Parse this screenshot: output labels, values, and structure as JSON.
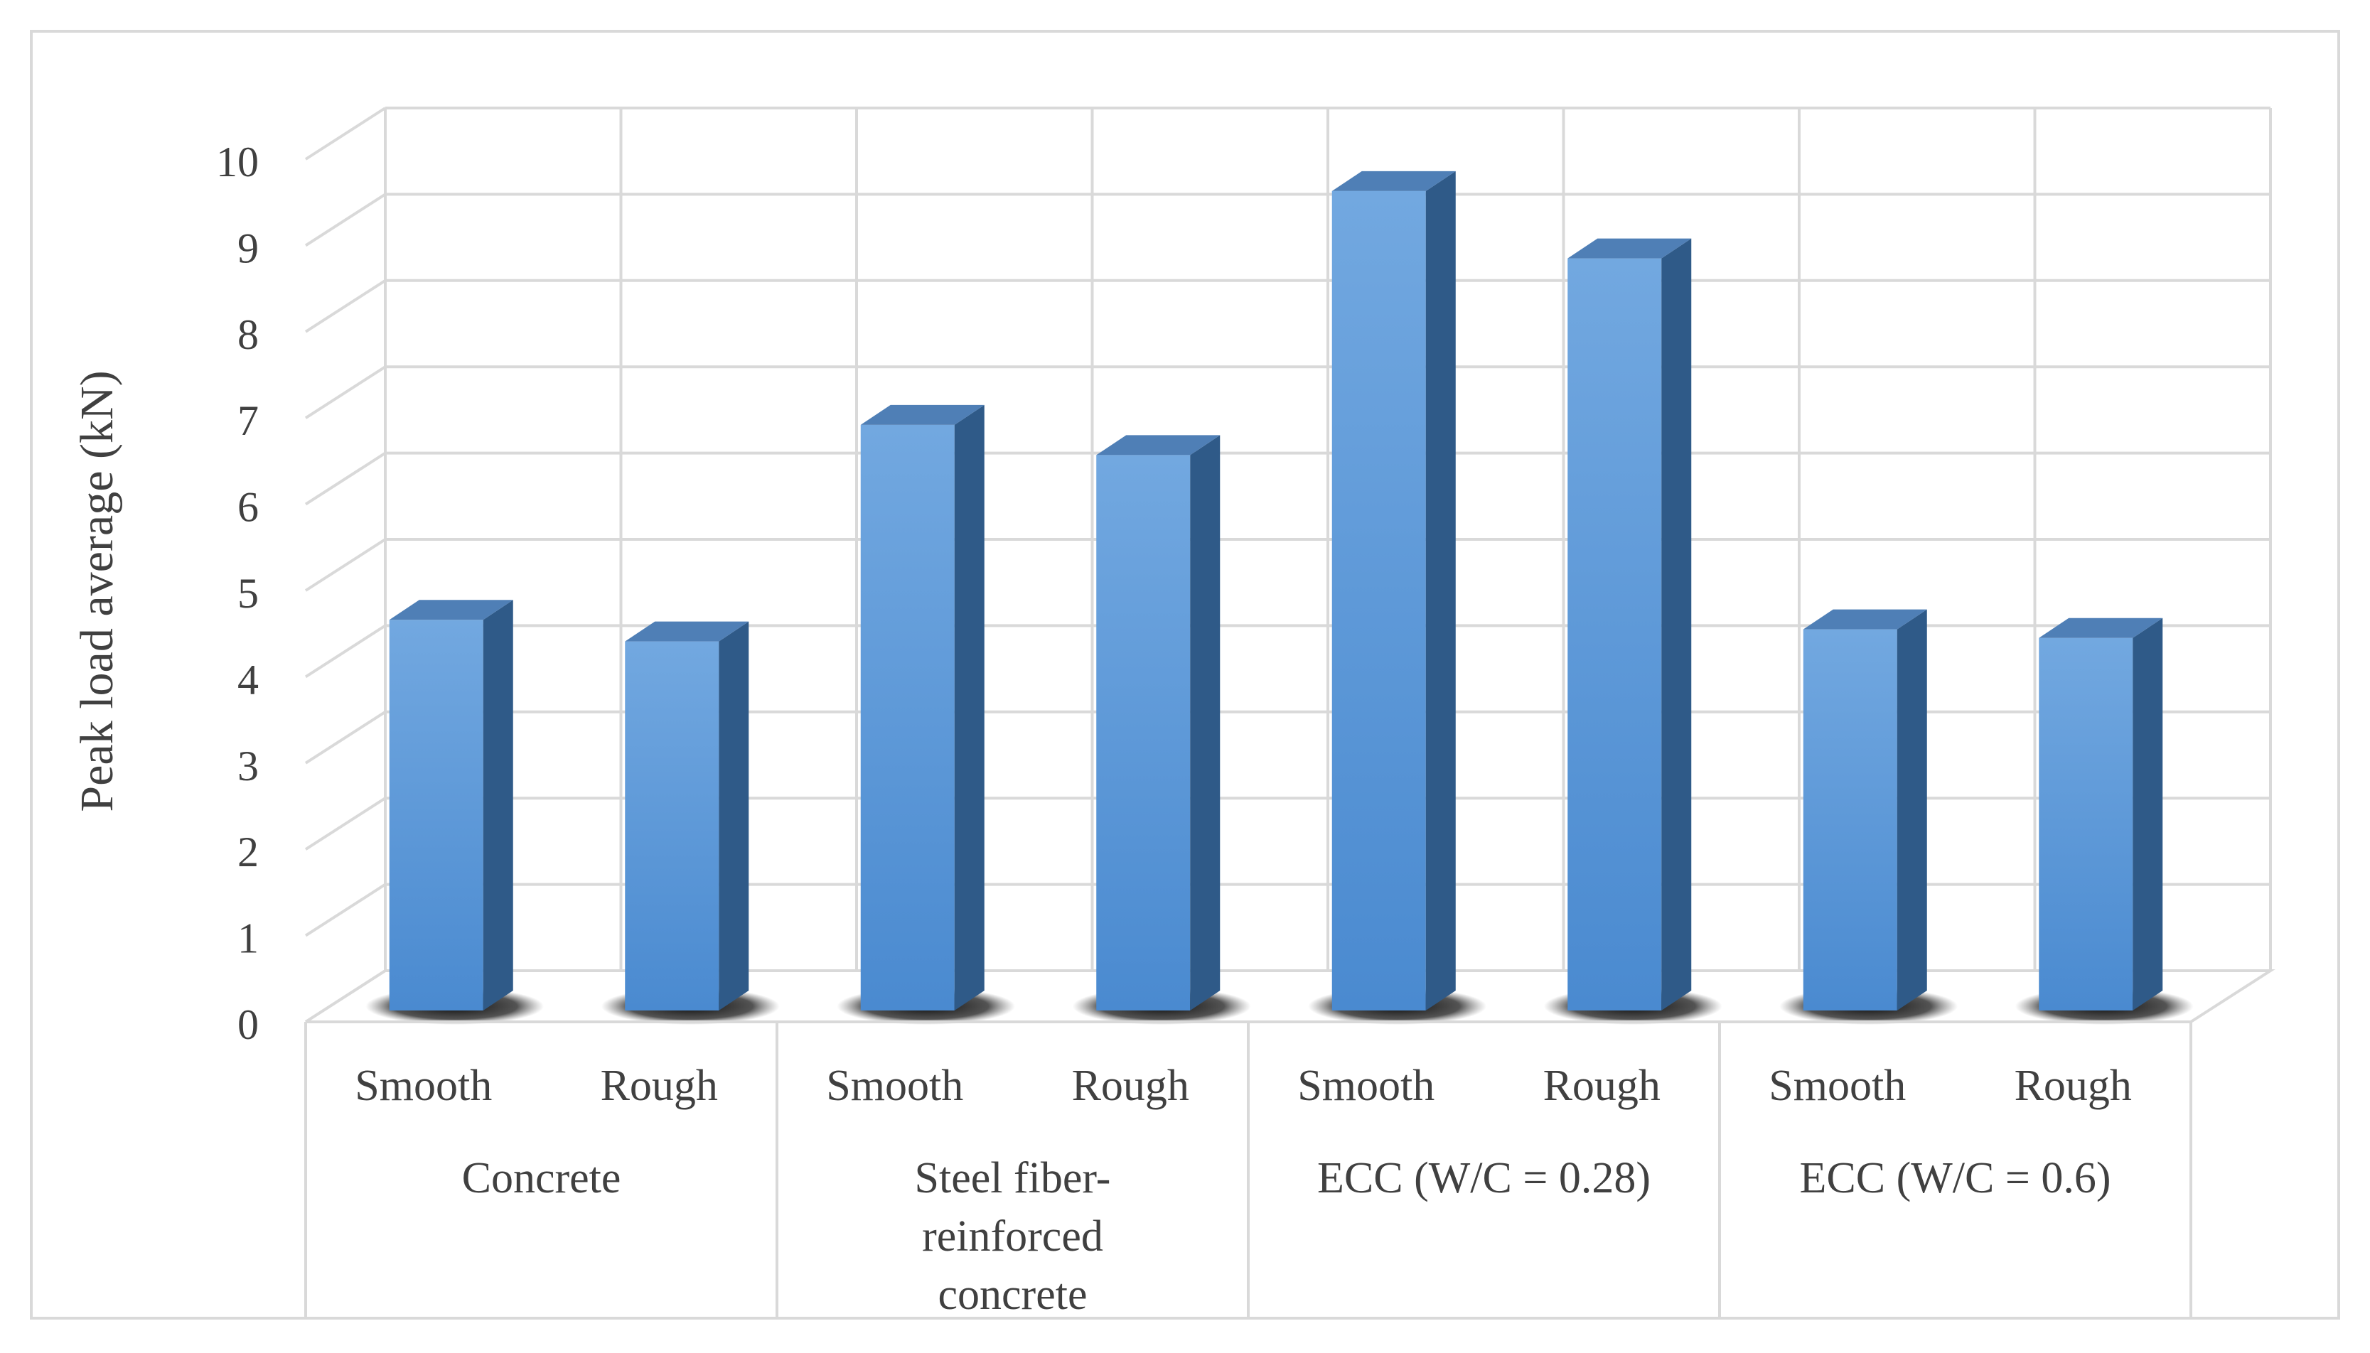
{
  "chart_data": {
    "type": "bar",
    "style": "3d-column",
    "title": "",
    "xlabel": "",
    "ylabel": "Peak load average (kN)",
    "ylim": [
      0,
      10
    ],
    "yticks": [
      "0",
      "1",
      "2",
      "3",
      "4",
      "5",
      "6",
      "7",
      "8",
      "9",
      "10"
    ],
    "grid": true,
    "legend": "none",
    "groups": [
      {
        "label": "Concrete",
        "label_lines": [
          "Concrete"
        ]
      },
      {
        "label": "Steel fiber-reinforced concrete",
        "label_lines": [
          "Steel fiber-",
          "reinforced",
          "concrete"
        ]
      },
      {
        "label": "ECC (W/C = 0.28)",
        "label_lines": [
          "ECC (W/C = 0.28)"
        ]
      },
      {
        "label": "ECC (W/C = 0.6)",
        "label_lines": [
          "ECC (W/C = 0.6)"
        ]
      }
    ],
    "categories": [
      "Smooth",
      "Rough",
      "Smooth",
      "Rough",
      "Smooth",
      "Rough",
      "Smooth",
      "Rough"
    ],
    "values": [
      4.66,
      4.41,
      6.92,
      6.57,
      9.63,
      8.85,
      4.55,
      4.45
    ],
    "colors": {
      "bar_front_top": "#72a8e0",
      "bar_front_bottom": "#4a8ad0",
      "bar_side": "#2f5a88",
      "bar_top": "#4f7fb6",
      "shadow": "#1a1a1a",
      "grid": "#d9d9d9",
      "text": "#404040",
      "border": "#d9d9d9"
    }
  }
}
